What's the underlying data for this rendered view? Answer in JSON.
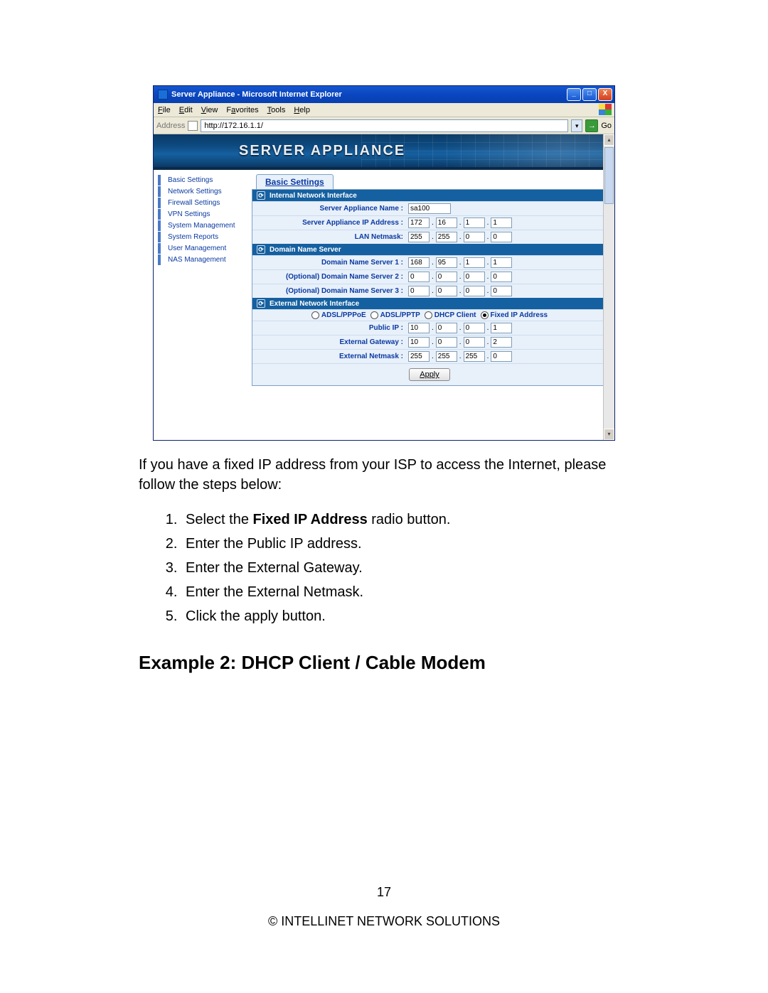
{
  "browser": {
    "title": "Server Appliance - Microsoft Internet Explorer",
    "menus": [
      "File",
      "Edit",
      "View",
      "Favorites",
      "Tools",
      "Help"
    ],
    "address_label": "Address",
    "url": "http://172.16.1.1/",
    "go_label": "Go"
  },
  "banner": {
    "title": "SERVER APPLIANCE"
  },
  "sidebar": {
    "items": [
      "Basic Settings",
      "Network Settings",
      "Firewall Settings",
      "VPN Settings",
      "System Management",
      "System Reports",
      "User Management",
      "NAS Management"
    ]
  },
  "tab": {
    "label": "Basic Settings"
  },
  "sections": {
    "ini": {
      "title": "Internal Network Interface",
      "name_label": "Server Appliance Name :",
      "name_value": "sa100",
      "ip_label": "Server Appliance IP Address :",
      "ip": [
        "172",
        "16",
        "1",
        "1"
      ],
      "netmask_label": "LAN Netmask:",
      "netmask": [
        "255",
        "255",
        "0",
        "0"
      ]
    },
    "dns": {
      "title": "Domain Name Server",
      "dns1_label": "Domain Name Server 1 :",
      "dns1": [
        "168",
        "95",
        "1",
        "1"
      ],
      "dns2_label": "(Optional) Domain Name Server 2 :",
      "dns2": [
        "0",
        "0",
        "0",
        "0"
      ],
      "dns3_label": "(Optional) Domain Name Server 3 :",
      "dns3": [
        "0",
        "0",
        "0",
        "0"
      ]
    },
    "ext": {
      "title": "External Network Interface",
      "radios": [
        "ADSL/PPPoE",
        "ADSL/PPTP",
        "DHCP Client",
        "Fixed IP Address"
      ],
      "radio_selected": 3,
      "pubip_label": "Public IP :",
      "pubip": [
        "10",
        "0",
        "0",
        "1"
      ],
      "gw_label": "External Gateway :",
      "gw": [
        "10",
        "0",
        "0",
        "2"
      ],
      "nm_label": "External Netmask :",
      "nm": [
        "255",
        "255",
        "255",
        "0"
      ],
      "apply_label": "Apply"
    }
  },
  "doc": {
    "intro": "If you have a fixed IP address from your ISP to access the Internet, please follow the steps below:",
    "steps": {
      "s1a": "Select the ",
      "s1b": "Fixed IP Address",
      "s1c": " radio button.",
      "s2": "Enter the Public IP address.",
      "s3": "Enter the External Gateway.",
      "s4": "Enter the External Netmask.",
      "s5": "Click the apply button."
    },
    "h2": "Example 2: DHCP Client / Cable Modem",
    "page_number": "17",
    "footer": "© INTELLINET NETWORK SOLUTIONS"
  },
  "colors": {
    "titlebar": "#1557d0",
    "banner_bg": "#0d4a80",
    "section_hdr": "#1560a0",
    "row_bg": "#e8f0fa",
    "link": "#0a3aa0"
  }
}
